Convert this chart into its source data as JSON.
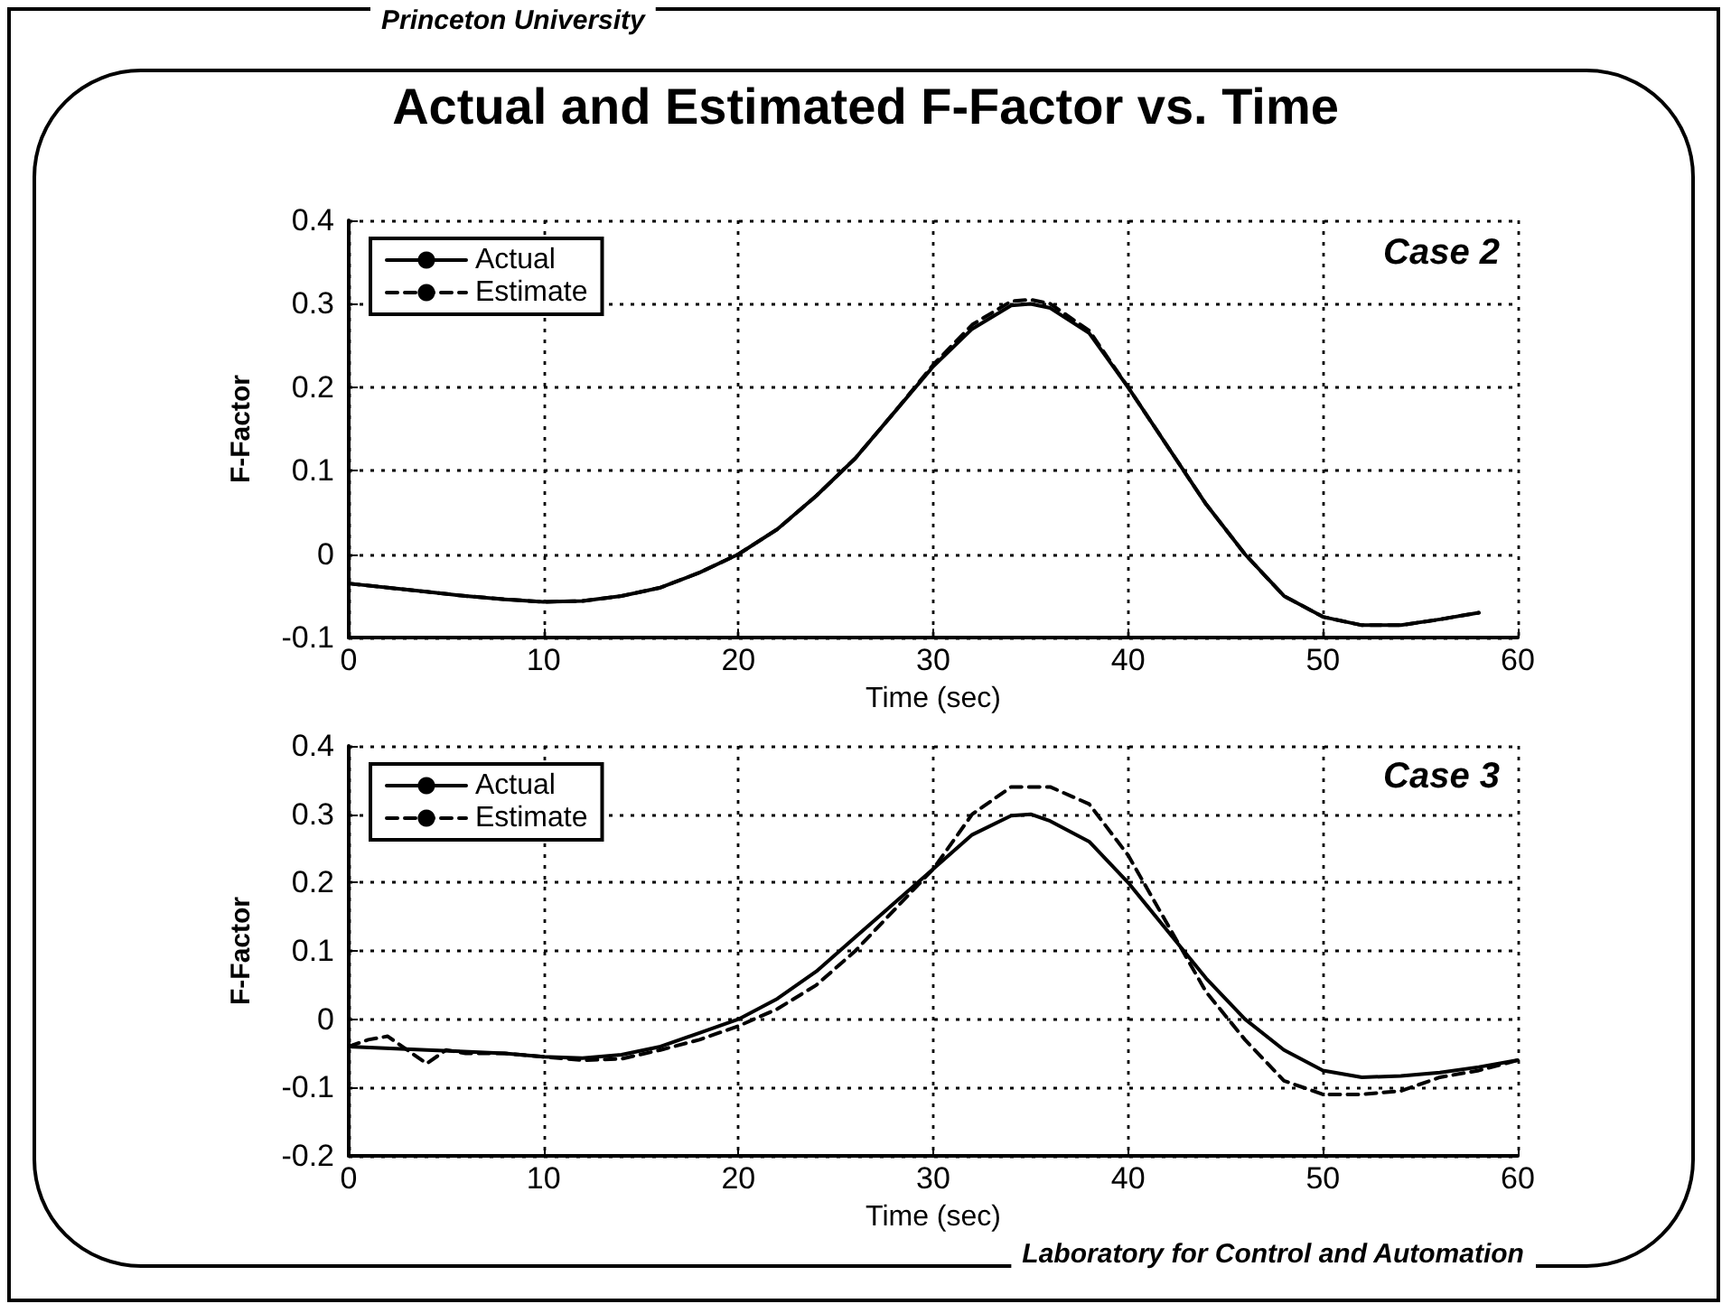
{
  "chart_data": [
    {
      "type": "line",
      "title": "Actual and Estimated F-Factor vs. Time",
      "xlabel": "Time (sec)",
      "ylabel": "F-Factor",
      "annotations": [
        "Princeton University",
        "Case 2"
      ],
      "xlim": [
        0,
        60
      ],
      "xticks": [
        0,
        10,
        20,
        30,
        40,
        50,
        60
      ],
      "ylim": [
        -0.1,
        0.4
      ],
      "yticks": [
        -0.1,
        0,
        0.1,
        0.2,
        0.3,
        0.4
      ],
      "grid": true,
      "legend": "top left",
      "marker": "none",
      "x": [
        0,
        2,
        4,
        6,
        8,
        10,
        12,
        14,
        16,
        18,
        20,
        22,
        24,
        26,
        28,
        30,
        32,
        34,
        35,
        36,
        38,
        40,
        42,
        44,
        46,
        48,
        50,
        52,
        54,
        56,
        58
      ],
      "series": [
        {
          "name": "Actual",
          "color": "#000000",
          "line_style": "solid",
          "values": [
            -0.035,
            -0.04,
            -0.045,
            -0.05,
            -0.054,
            -0.057,
            -0.056,
            -0.05,
            -0.04,
            -0.022,
            0.0,
            0.03,
            0.07,
            0.115,
            0.17,
            0.225,
            0.27,
            0.298,
            0.3,
            0.295,
            0.265,
            0.2,
            0.13,
            0.06,
            0.0,
            -0.05,
            -0.075,
            -0.085,
            -0.085,
            -0.078,
            -0.07
          ]
        },
        {
          "name": "Estimate",
          "color": "#000000",
          "line_style": "dashed",
          "values": [
            -0.035,
            -0.04,
            -0.045,
            -0.05,
            -0.054,
            -0.057,
            -0.056,
            -0.05,
            -0.04,
            -0.022,
            0.0,
            0.03,
            0.07,
            0.115,
            0.17,
            0.227,
            0.275,
            0.303,
            0.305,
            0.3,
            0.268,
            0.2,
            0.13,
            0.06,
            0.0,
            -0.05,
            -0.075,
            -0.085,
            -0.085,
            -0.078,
            -0.07
          ]
        }
      ]
    },
    {
      "type": "line",
      "xlabel": "Time (sec)",
      "ylabel": "F-Factor",
      "annotations": [
        "Case 3",
        "Laboratory for Control and Automation"
      ],
      "xlim": [
        0,
        60
      ],
      "xticks": [
        0,
        10,
        20,
        30,
        40,
        50,
        60
      ],
      "ylim": [
        -0.2,
        0.4
      ],
      "yticks": [
        -0.2,
        -0.1,
        0,
        0.1,
        0.2,
        0.3,
        0.4
      ],
      "grid": true,
      "legend": "top left",
      "marker": "none",
      "series": [
        {
          "name": "Actual",
          "color": "#000000",
          "line_style": "solid",
          "x": [
            0,
            4,
            8,
            10,
            12,
            14,
            16,
            18,
            20,
            22,
            24,
            26,
            28,
            30,
            32,
            34,
            35,
            36,
            38,
            40,
            42,
            44,
            46,
            48,
            50,
            52,
            54,
            56,
            58,
            60
          ],
          "values": [
            -0.04,
            -0.045,
            -0.05,
            -0.055,
            -0.057,
            -0.052,
            -0.04,
            -0.02,
            0.0,
            0.03,
            0.07,
            0.12,
            0.17,
            0.22,
            0.27,
            0.298,
            0.3,
            0.29,
            0.26,
            0.2,
            0.13,
            0.06,
            0.0,
            -0.045,
            -0.075,
            -0.085,
            -0.083,
            -0.078,
            -0.07,
            -0.06
          ]
        },
        {
          "name": "Estimate",
          "color": "#000000",
          "line_style": "dashed",
          "x": [
            0,
            1,
            2,
            3,
            4,
            5,
            6,
            8,
            10,
            12,
            14,
            16,
            18,
            20,
            22,
            24,
            26,
            28,
            30,
            32,
            34,
            36,
            38,
            40,
            42,
            44,
            46,
            48,
            50,
            52,
            54,
            56,
            58,
            60
          ],
          "values": [
            -0.04,
            -0.03,
            -0.025,
            -0.045,
            -0.065,
            -0.045,
            -0.05,
            -0.05,
            -0.055,
            -0.06,
            -0.058,
            -0.045,
            -0.03,
            -0.01,
            0.015,
            0.05,
            0.1,
            0.16,
            0.22,
            0.3,
            0.34,
            0.34,
            0.315,
            0.24,
            0.14,
            0.04,
            -0.03,
            -0.09,
            -0.11,
            -0.11,
            -0.105,
            -0.085,
            -0.075,
            -0.06
          ]
        }
      ]
    }
  ]
}
